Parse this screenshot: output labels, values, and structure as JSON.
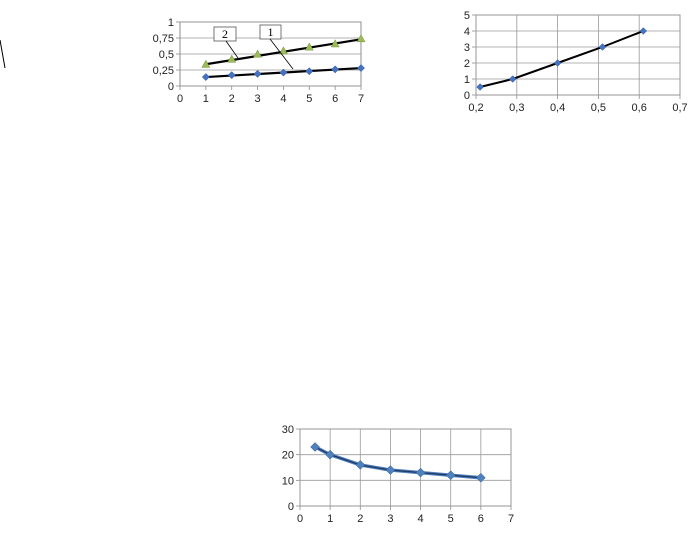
{
  "chart_data": [
    {
      "type": "line",
      "x": [
        1,
        2,
        3,
        4,
        5,
        6,
        7
      ],
      "xlim": [
        0,
        7
      ],
      "ylim": [
        0,
        1
      ],
      "x_ticks": [
        "0",
        "1",
        "2",
        "3",
        "4",
        "5",
        "6",
        "7"
      ],
      "y_ticks": [
        "0",
        "0,25",
        "0,5",
        "0,75",
        "1"
      ],
      "grid": "horizontal",
      "series": [
        {
          "label_callout": "1",
          "color": "#4472C4",
          "marker": "diamond",
          "values": [
            0.14,
            0.17,
            0.19,
            0.21,
            0.23,
            0.26,
            0.28
          ]
        },
        {
          "label_callout": "2",
          "color": "#9BBB59",
          "marker": "triangle",
          "values": [
            0.34,
            0.42,
            0.5,
            0.55,
            0.61,
            0.66,
            0.74
          ]
        }
      ],
      "trendlines": [
        {
          "color": "#000000",
          "from": [
            1,
            0.34
          ],
          "to": [
            7,
            0.73
          ]
        },
        {
          "color": "#000000",
          "from": [
            1,
            0.14
          ],
          "to": [
            7,
            0.28
          ]
        }
      ]
    },
    {
      "type": "line",
      "xlim": [
        0.2,
        0.7
      ],
      "ylim": [
        0,
        5
      ],
      "x_ticks": [
        "0,2",
        "0,3",
        "0,4",
        "0,5",
        "0,6",
        "0,7"
      ],
      "y_ticks": [
        "0",
        "1",
        "2",
        "3",
        "4",
        "5"
      ],
      "grid": "both",
      "series": [
        {
          "color": "#4472C4",
          "marker": "diamond",
          "line_color": "#000000",
          "x": [
            0.21,
            0.29,
            0.4,
            0.51,
            0.61
          ],
          "values": [
            0.5,
            1,
            2,
            3,
            4
          ]
        }
      ]
    },
    {
      "type": "line",
      "xlim": [
        0,
        7
      ],
      "ylim": [
        0,
        30
      ],
      "x_ticks": [
        "0",
        "1",
        "2",
        "3",
        "4",
        "5",
        "6",
        "7"
      ],
      "y_ticks": [
        "0",
        "10",
        "20",
        "30"
      ],
      "grid": "both",
      "series": [
        {
          "color": "#4F81BD",
          "marker": "diamond",
          "line_color": "#1F3864",
          "x": [
            0.5,
            1,
            2,
            3,
            4,
            5,
            6
          ],
          "values": [
            23,
            20,
            16,
            14,
            13,
            12,
            11
          ]
        }
      ]
    }
  ]
}
